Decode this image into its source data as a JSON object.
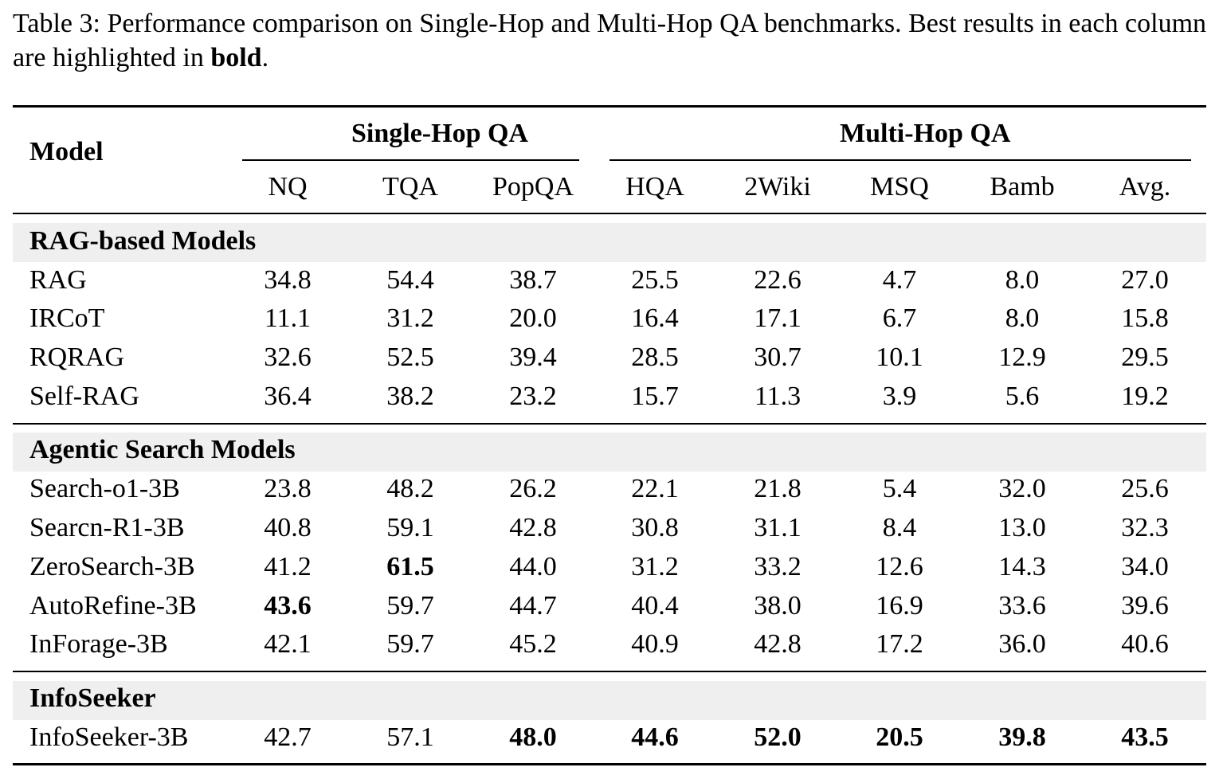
{
  "caption": {
    "prefix": "Table 3: Performance comparison on Single-Hop and Multi-Hop QA benchmarks. Best results in each column are highlighted in ",
    "bold_word": "bold",
    "suffix": "."
  },
  "header": {
    "model": "Model",
    "single_hop": "Single-Hop QA",
    "multi_hop": "Multi-Hop QA",
    "columns": [
      "NQ",
      "TQA",
      "PopQA",
      "HQA",
      "2Wiki",
      "MSQ",
      "Bamb",
      "Avg."
    ]
  },
  "groups": [
    {
      "title": "RAG-based Models",
      "rows": [
        {
          "model": "RAG",
          "values": [
            "34.8",
            "54.4",
            "38.7",
            "25.5",
            "22.6",
            "4.7",
            "8.0",
            "27.0"
          ],
          "bold": []
        },
        {
          "model": "IRCoT",
          "values": [
            "11.1",
            "31.2",
            "20.0",
            "16.4",
            "17.1",
            "6.7",
            "8.0",
            "15.8"
          ],
          "bold": []
        },
        {
          "model": "RQRAG",
          "values": [
            "32.6",
            "52.5",
            "39.4",
            "28.5",
            "30.7",
            "10.1",
            "12.9",
            "29.5"
          ],
          "bold": []
        },
        {
          "model": "Self-RAG",
          "values": [
            "36.4",
            "38.2",
            "23.2",
            "15.7",
            "11.3",
            "3.9",
            "5.6",
            "19.2"
          ],
          "bold": []
        }
      ]
    },
    {
      "title": "Agentic Search Models",
      "rows": [
        {
          "model": "Search-o1-3B",
          "values": [
            "23.8",
            "48.2",
            "26.2",
            "22.1",
            "21.8",
            "5.4",
            "32.0",
            "25.6"
          ],
          "bold": []
        },
        {
          "model": "Searcn-R1-3B",
          "values": [
            "40.8",
            "59.1",
            "42.8",
            "30.8",
            "31.1",
            "8.4",
            "13.0",
            "32.3"
          ],
          "bold": []
        },
        {
          "model": "ZeroSearch-3B",
          "values": [
            "41.2",
            "61.5",
            "44.0",
            "31.2",
            "33.2",
            "12.6",
            "14.3",
            "34.0"
          ],
          "bold": [
            1
          ]
        },
        {
          "model": "AutoRefine-3B",
          "values": [
            "43.6",
            "59.7",
            "44.7",
            "40.4",
            "38.0",
            "16.9",
            "33.6",
            "39.6"
          ],
          "bold": [
            0
          ]
        },
        {
          "model": "InForage-3B",
          "values": [
            "42.1",
            "59.7",
            "45.2",
            "40.9",
            "42.8",
            "17.2",
            "36.0",
            "40.6"
          ],
          "bold": []
        }
      ]
    },
    {
      "title": "InfoSeeker",
      "rows": [
        {
          "model": "InfoSeeker-3B",
          "values": [
            "42.7",
            "57.1",
            "48.0",
            "44.6",
            "52.0",
            "20.5",
            "39.8",
            "43.5"
          ],
          "bold": [
            2,
            3,
            4,
            5,
            6,
            7
          ]
        }
      ]
    }
  ]
}
